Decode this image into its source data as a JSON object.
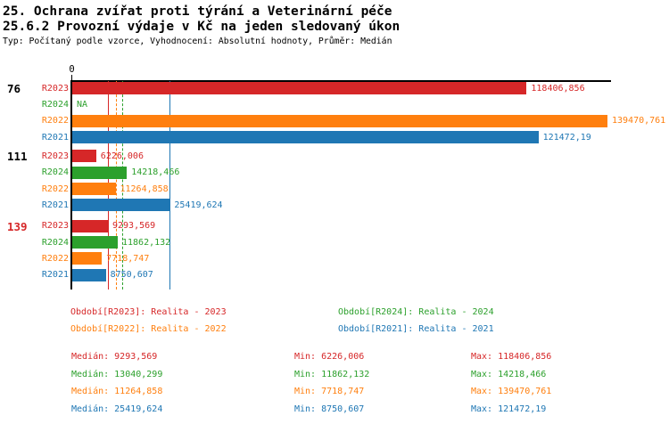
{
  "header": {
    "title_line1": "25. Ochrana zvířat proti týrání a Veterinární péče",
    "title_line2": "25.6.2 Provozní výdaje v Kč na jeden sledovaný úkon",
    "subtitle": "Typ: Počítaný podle vzorce, Vyhodnocení: Absolutní hodnoty, Průměr: Medián"
  },
  "colors": {
    "R2023": "#d62728",
    "R2024": "#2ca02c",
    "R2022": "#ff7f0e",
    "R2021": "#1f77b4",
    "axis": "#000000",
    "group_label_default": "#000000",
    "group_label_highlight": "#d62728"
  },
  "chart_data": {
    "type": "bar",
    "orientation": "horizontal-grouped",
    "x_axis": {
      "zero_label": "0",
      "scale_max_value": 139470.761
    },
    "series_order": [
      "R2023",
      "R2024",
      "R2022",
      "R2021"
    ],
    "groups": [
      {
        "label": "76",
        "highlight": false,
        "bars": [
          {
            "series": "R2023",
            "value": 118406.856,
            "value_label": "118406,856"
          },
          {
            "series": "R2024",
            "value": null,
            "value_label": "NA"
          },
          {
            "series": "R2022",
            "value": 139470.761,
            "value_label": "139470,761"
          },
          {
            "series": "R2021",
            "value": 121472.19,
            "value_label": "121472,19"
          }
        ]
      },
      {
        "label": "111",
        "highlight": false,
        "bars": [
          {
            "series": "R2023",
            "value": 6226.006,
            "value_label": "6226,006"
          },
          {
            "series": "R2024",
            "value": 14218.466,
            "value_label": "14218,466"
          },
          {
            "series": "R2022",
            "value": 11264.858,
            "value_label": "11264,858"
          },
          {
            "series": "R2021",
            "value": 25419.624,
            "value_label": "25419,624"
          }
        ]
      },
      {
        "label": "139",
        "highlight": true,
        "bars": [
          {
            "series": "R2023",
            "value": 9293.569,
            "value_label": "9293,569"
          },
          {
            "series": "R2024",
            "value": 11862.132,
            "value_label": "11862,132"
          },
          {
            "series": "R2022",
            "value": 7718.747,
            "value_label": "7718,747"
          },
          {
            "series": "R2021",
            "value": 8750.607,
            "value_label": "8750,607"
          }
        ]
      }
    ],
    "median_lines": [
      {
        "series": "R2023",
        "value": 9293.569,
        "style": "solid"
      },
      {
        "series": "R2022",
        "value": 11264.858,
        "style": "dashed"
      },
      {
        "series": "R2024",
        "value": 13040.299,
        "style": "dashed"
      },
      {
        "series": "R2021",
        "value": 25419.624,
        "style": "solid"
      }
    ]
  },
  "legend": {
    "items": [
      {
        "series": "R2023",
        "text": "Období[R2023]: Realita - 2023"
      },
      {
        "series": "R2024",
        "text": "Období[R2024]: Realita - 2024"
      },
      {
        "series": "R2022",
        "text": "Období[R2022]: Realita - 2022"
      },
      {
        "series": "R2021",
        "text": "Období[R2021]: Realita - 2021"
      }
    ]
  },
  "stats": {
    "rows": [
      {
        "series": "R2023",
        "median": "Medián: 9293,569",
        "min": "Min: 6226,006",
        "max": "Max: 118406,856"
      },
      {
        "series": "R2024",
        "median": "Medián: 13040,299",
        "min": "Min: 11862,132",
        "max": "Max: 14218,466"
      },
      {
        "series": "R2022",
        "median": "Medián: 11264,858",
        "min": "Min: 7718,747",
        "max": "Max: 139470,761"
      },
      {
        "series": "R2021",
        "median": "Medián: 25419,624",
        "min": "Min: 8750,607",
        "max": "Max: 121472,19"
      }
    ]
  }
}
